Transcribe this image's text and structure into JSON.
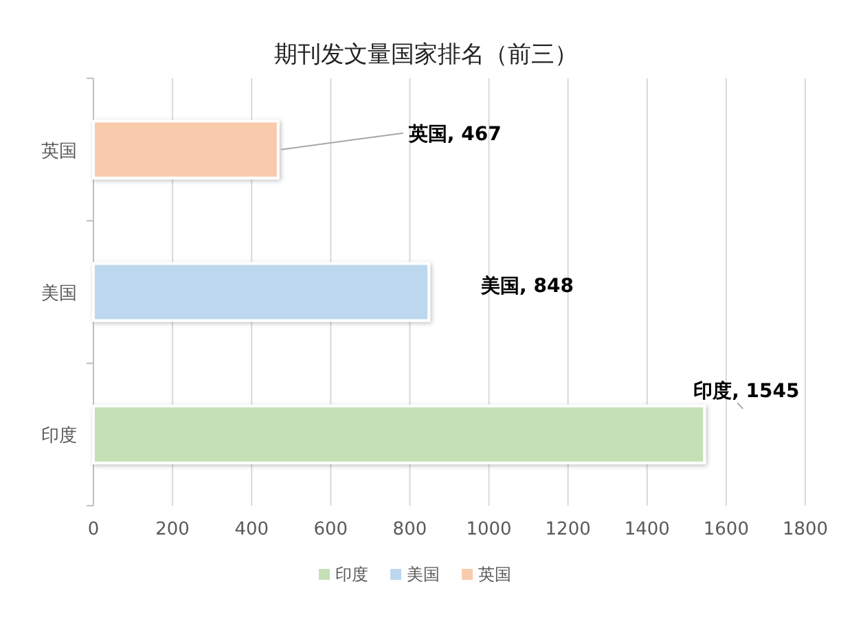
{
  "chart_data": {
    "type": "bar",
    "orientation": "horizontal",
    "title": "期刊发文量国家排名（前三）",
    "categories": [
      "英国",
      "美国",
      "印度"
    ],
    "series": [
      {
        "name": "印度",
        "color": "#c5e0b4",
        "values": [
          null,
          null,
          1545
        ],
        "value_labels": [
          null,
          null,
          "印度, 1545"
        ]
      },
      {
        "name": "美国",
        "color": "#bdd7ee",
        "values": [
          null,
          848,
          null
        ],
        "value_labels": [
          null,
          "美国, 848",
          null
        ]
      },
      {
        "name": "英国",
        "color": "#f8cbad",
        "values": [
          467,
          null,
          null
        ],
        "value_labels": [
          "英国, 467",
          null,
          null
        ]
      }
    ],
    "xlim": [
      0,
      1800
    ],
    "xticks": [
      0,
      200,
      400,
      600,
      800,
      1000,
      1200,
      1400,
      1600,
      1800
    ],
    "grid": "x",
    "legend": "bottom"
  }
}
